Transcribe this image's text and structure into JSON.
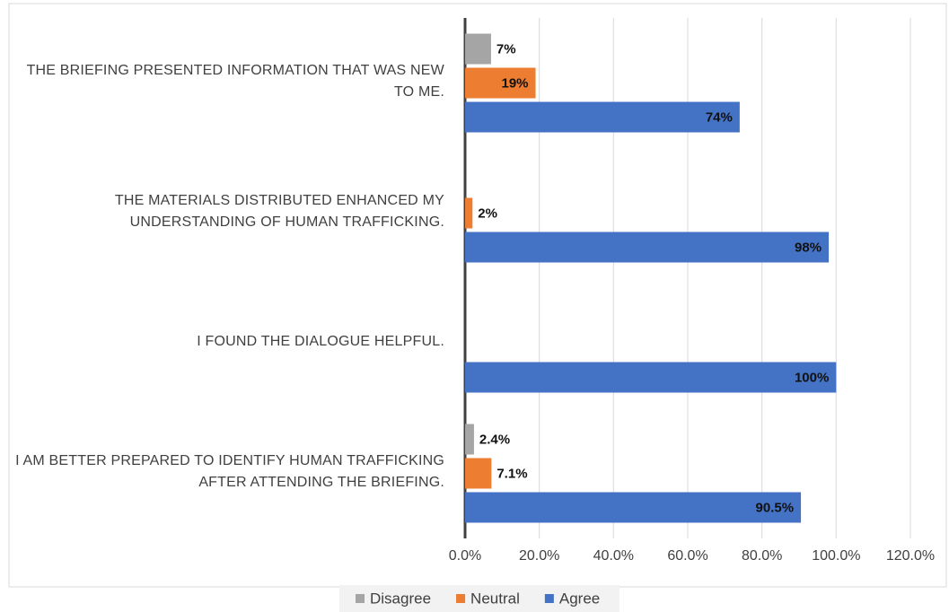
{
  "chart_data": {
    "type": "bar",
    "orientation": "horizontal",
    "categories": [
      "THE BRIEFING PRESENTED INFORMATION THAT WAS NEW TO ME.",
      "THE MATERIALS DISTRIBUTED ENHANCED MY UNDERSTANDING OF HUMAN TRAFFICKING.",
      "I FOUND THE DIALOGUE HELPFUL.",
      "I AM BETTER PREPARED TO IDENTIFY HUMAN TRAFFICKING AFTER ATTENDING THE BRIEFING."
    ],
    "series": [
      {
        "name": "Disagree",
        "color": "#a5a5a5",
        "values": [
          7,
          null,
          null,
          2.4
        ],
        "value_labels": [
          "7%",
          null,
          null,
          "2.4%"
        ]
      },
      {
        "name": "Neutral",
        "color": "#ed7d31",
        "values": [
          19,
          2,
          null,
          7.1
        ],
        "value_labels": [
          "19%",
          "2%",
          null,
          "7.1%"
        ]
      },
      {
        "name": "Agree",
        "color": "#4472c4",
        "values": [
          74,
          98,
          100,
          90.5
        ],
        "value_labels": [
          "74%",
          "98%",
          "100%",
          "90.5%"
        ]
      }
    ],
    "xlim": [
      0,
      120
    ],
    "xticks": [
      {
        "value": 0,
        "label": "0.0%"
      },
      {
        "value": 20,
        "label": "20.0%"
      },
      {
        "value": 40,
        "label": "40.0%"
      },
      {
        "value": 60,
        "label": "60.0%"
      },
      {
        "value": 80,
        "label": "80.0%"
      },
      {
        "value": 100,
        "label": "100.0%"
      },
      {
        "value": 120,
        "label": "120.0%"
      }
    ],
    "grid": true,
    "legend": "bottom"
  }
}
